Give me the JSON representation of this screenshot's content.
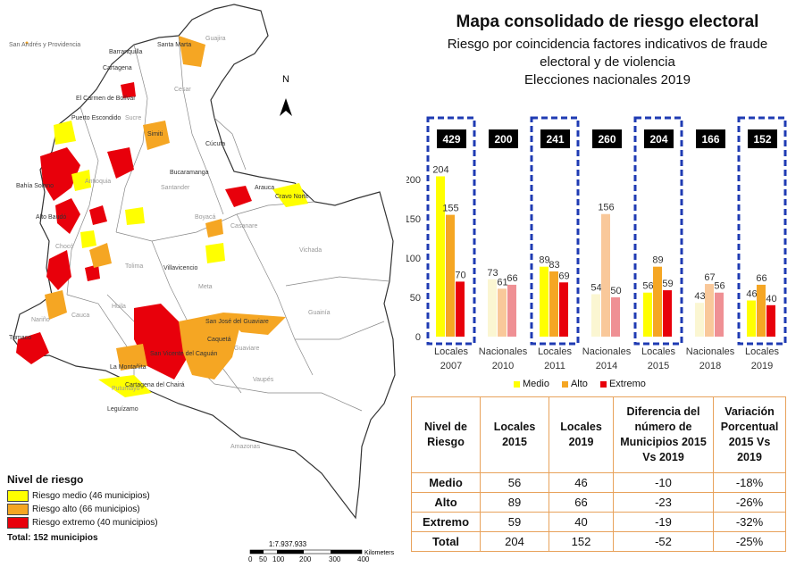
{
  "title": "Mapa consolidado de riesgo electoral",
  "subtitle_lines": [
    "Riesgo por coincidencia factores indicativos de fraude",
    "electoral y de violencia",
    "Elecciones nacionales 2019"
  ],
  "map": {
    "north": "N",
    "scale_text": "1:7.937.933",
    "scale_ticks": [
      "0",
      "50",
      "100",
      "200",
      "300",
      "400"
    ],
    "scale_unit": "Kilometers",
    "place_labels": [
      "San Andrés y Providencia",
      "Santa Marta",
      "Barranquilla",
      "Cartagena",
      "El Carmen de Bolívar",
      "Puerto Escondido",
      "Sucre",
      "Simiti",
      "Cúcuta",
      "Bucaramanga",
      "Arauca",
      "Cravo Norte",
      "Casanare",
      "Vichada",
      "Guainía",
      "Meta",
      "Guaviare",
      "Vaupés",
      "Amazonas",
      "Caquetá",
      "Putumayo",
      "Bahía Solano",
      "Alto Baudó",
      "San José del Guaviare",
      "Cartagena del Chairá",
      "La Montañita",
      "San Vicente del Caguán",
      "Leguízamo",
      "Tumaco",
      "Villavicencio",
      "Antioquia",
      "Santander",
      "Boyacá",
      "Cesar",
      "Guajira",
      "Chocó",
      "Nariño",
      "Cauca",
      "Huila",
      "Tolima"
    ],
    "legend": {
      "title": "Nivel de riesgo",
      "items": [
        {
          "label": "Riesgo medio (46 municipios)",
          "color": "#ffff00"
        },
        {
          "label": "Riesgo alto (66 municipios)",
          "color": "#f5a623"
        },
        {
          "label": "Riesgo extremo (40 municipios)",
          "color": "#e8000b"
        }
      ],
      "total": "Total: 152 municipios"
    }
  },
  "chart_data": {
    "type": "bar",
    "ylim": [
      0,
      200
    ],
    "yticks": [
      "0",
      "50",
      "100",
      "150",
      "200"
    ],
    "categories": [
      "Locales 2007",
      "Nacionales 2010",
      "Locales 2011",
      "Nacionales 2014",
      "Locales 2015",
      "Nacionales 2018",
      "Locales 2019"
    ],
    "totals": [
      "429",
      "200",
      "241",
      "260",
      "204",
      "166",
      "152"
    ],
    "highlighted": [
      true,
      false,
      true,
      false,
      true,
      false,
      true
    ],
    "series": [
      {
        "name": "Medio",
        "values": [
          204,
          73,
          89,
          54,
          56,
          43,
          46
        ],
        "color": "#ffff00",
        "faded": "#fbf6d2"
      },
      {
        "name": "Alto",
        "values": [
          155,
          61,
          83,
          156,
          89,
          67,
          66
        ],
        "color": "#f5a623",
        "faded": "#f9c89a"
      },
      {
        "name": "Extremo",
        "values": [
          70,
          66,
          69,
          50,
          59,
          56,
          40
        ],
        "color": "#e8000b",
        "faded": "#ef9094"
      }
    ]
  },
  "table": {
    "headers": [
      "Nivel de Riesgo",
      "Locales 2015",
      "Locales 2019",
      "Diferencia del número de Municipios 2015 Vs 2019",
      "Variación Porcentual 2015 Vs 2019"
    ],
    "rows": [
      [
        "Medio",
        "56",
        "46",
        "-10",
        "-18%"
      ],
      [
        "Alto",
        "89",
        "66",
        "-23",
        "-26%"
      ],
      [
        "Extremo",
        "59",
        "40",
        "-19",
        "-32%"
      ],
      [
        "Total",
        "204",
        "152",
        "-52",
        "-25%"
      ]
    ]
  }
}
